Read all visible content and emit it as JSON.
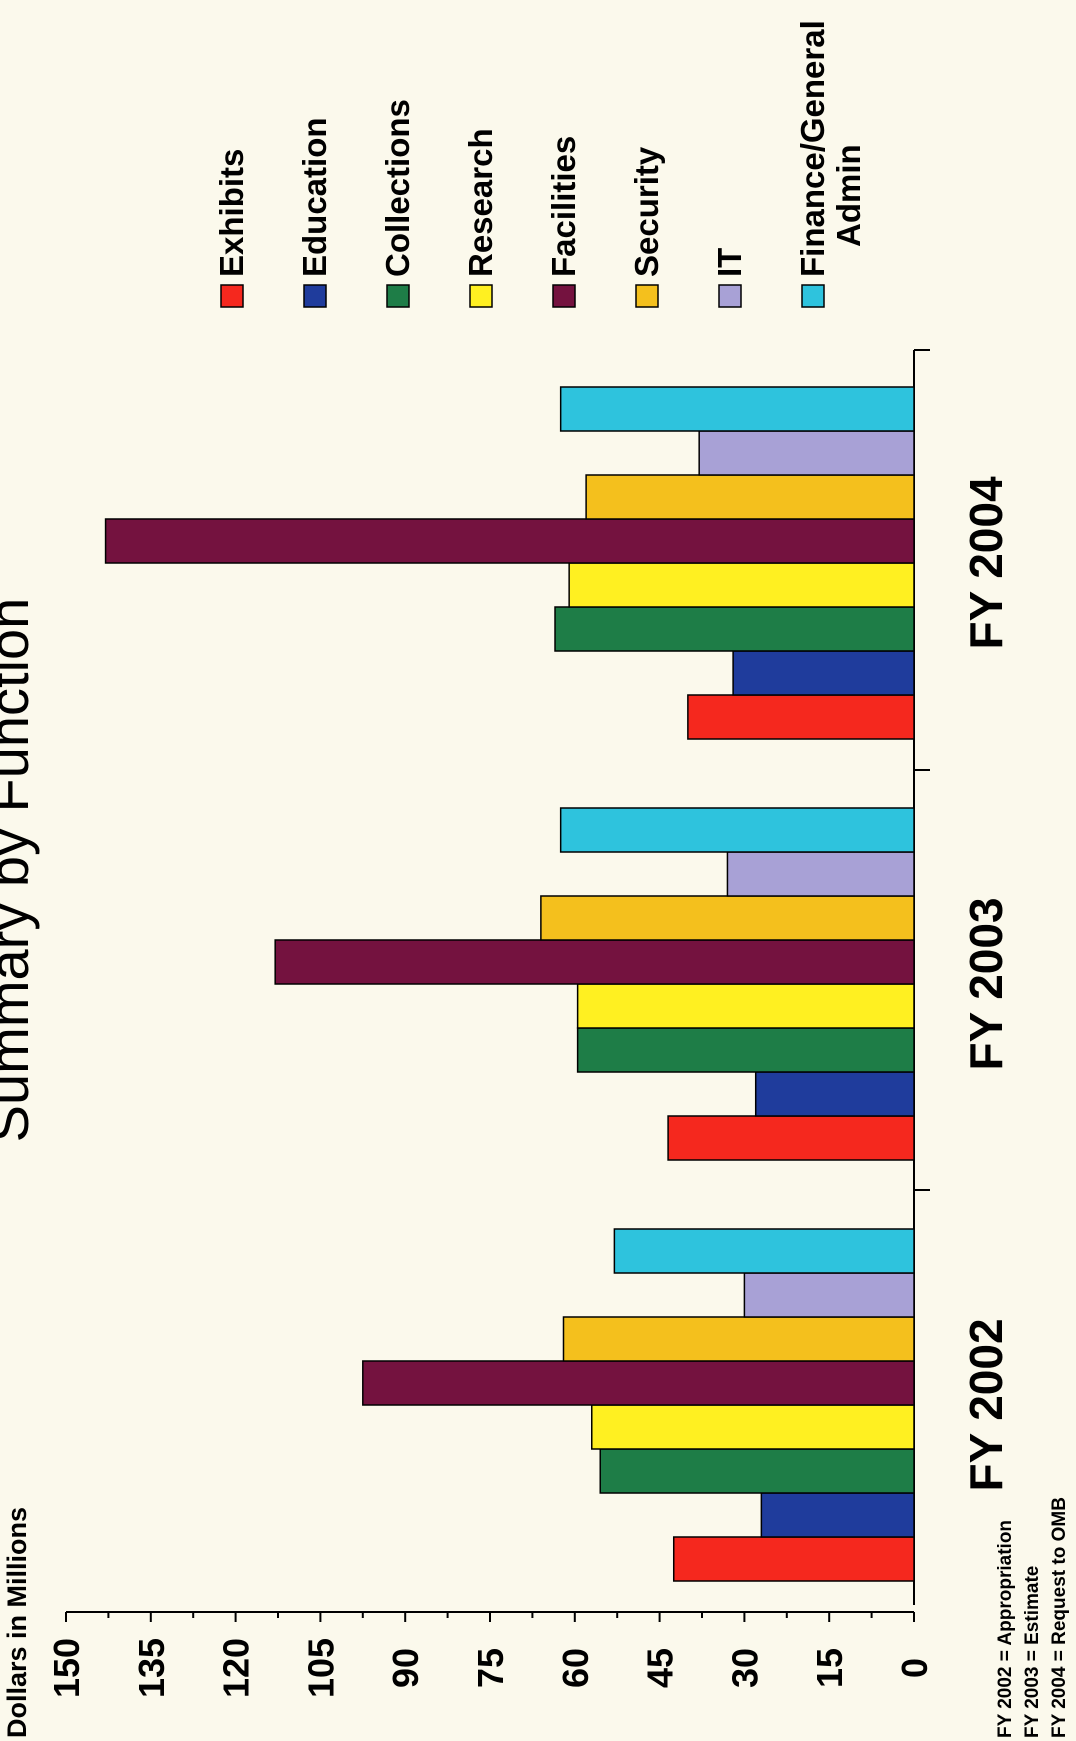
{
  "chart_data": {
    "type": "bar",
    "orientation": "rotated",
    "title": "Summary by Function",
    "ylabel": "Dollars in Millions",
    "ylim": [
      0,
      150
    ],
    "yticks": [
      0,
      15,
      30,
      45,
      60,
      75,
      90,
      105,
      120,
      135,
      150
    ],
    "categories": [
      "FY 2002",
      "FY 2003",
      "FY 2004"
    ],
    "series": [
      {
        "name": "Exhibits",
        "color": "#f5281e",
        "values": [
          42.5,
          43.5,
          40
        ]
      },
      {
        "name": "Education",
        "color": "#1f3c9c",
        "values": [
          27,
          28,
          32
        ]
      },
      {
        "name": "Collections",
        "color": "#1e7d47",
        "values": [
          55.5,
          59.5,
          63.5
        ]
      },
      {
        "name": "Research",
        "color": "#fff021",
        "values": [
          57,
          59.5,
          61
        ]
      },
      {
        "name": "Facilities",
        "color": "#74123f",
        "values": [
          97.5,
          113,
          143
        ]
      },
      {
        "name": "Security",
        "color": "#f4c01d",
        "values": [
          62,
          66,
          58
        ]
      },
      {
        "name": "IT",
        "color": "#a8a1d6",
        "values": [
          30,
          33,
          38
        ]
      },
      {
        "name": "Finance/General Admin",
        "color": "#2ec3dd",
        "values": [
          53,
          62.5,
          62.5
        ]
      }
    ],
    "legend_position": "right",
    "notes": [
      "FY 2002 = Appropriation",
      "FY 2003 = Estimate",
      "FY 2004 = Request to OMB"
    ]
  }
}
